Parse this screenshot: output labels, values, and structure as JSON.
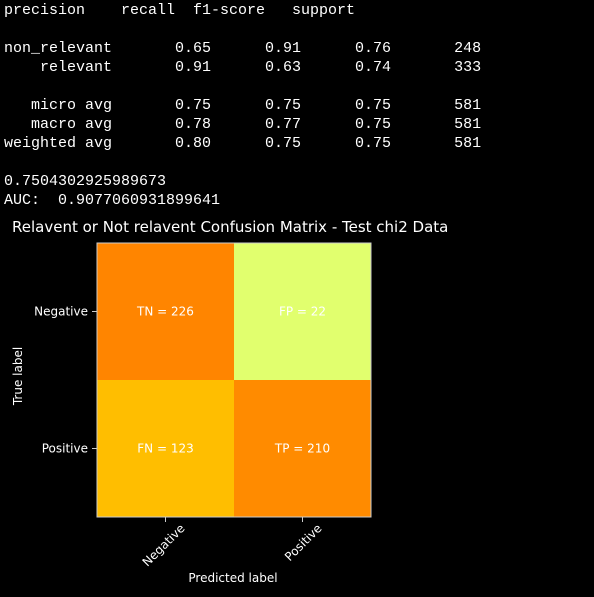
{
  "report": {
    "header": "precision    recall  f1-score   support",
    "lines": [
      "",
      "non_relevant       0.65      0.91      0.76       248",
      "    relevant       0.91      0.63      0.74       333",
      "",
      "   micro avg       0.75      0.75      0.75       581",
      "   macro avg       0.78      0.77      0.75       581",
      "weighted avg       0.80      0.75      0.75       581",
      "",
      "0.7504302925989673",
      "AUC:  0.9077060931899641"
    ]
  },
  "chart_data": {
    "type": "heatmap",
    "title": "Relavent or Not relavent Confusion Matrix - Test chi2 Data",
    "xlabel": "Predicted label",
    "ylabel": "True label",
    "x_ticks": [
      "Negative",
      "Positive"
    ],
    "y_ticks": [
      "Negative",
      "Positive"
    ],
    "cells": [
      {
        "row": 0,
        "col": 0,
        "value": 226,
        "label": "TN = 226",
        "color": "#ff8500"
      },
      {
        "row": 0,
        "col": 1,
        "value": 22,
        "label": "FP = 22",
        "color": "#e1ff6e"
      },
      {
        "row": 1,
        "col": 0,
        "value": 123,
        "label": "FN = 123",
        "color": "#ffbe00"
      },
      {
        "row": 1,
        "col": 1,
        "value": 210,
        "label": "TP = 210",
        "color": "#ff8b00"
      }
    ],
    "colormap": "Wistia"
  },
  "colors": {
    "background": "#000000",
    "text": "#ffffff",
    "axis": "#cccccc",
    "cell_text_dark": "#ffffff"
  }
}
